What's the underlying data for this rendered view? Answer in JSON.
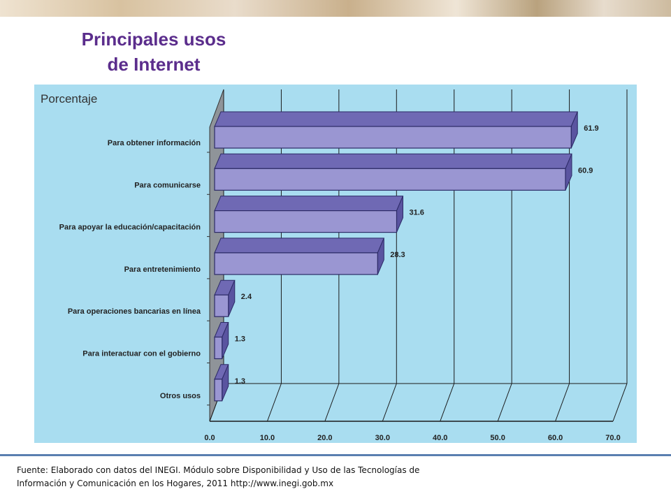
{
  "slide": {
    "title_line1": "Principales usos",
    "title_line2": "de Internet",
    "footer_line1": "Fuente: Elaborado con datos del INEGI. Módulo sobre Disponibilidad y Uso de las Tecnologías de",
    "footer_line2": "Información y Comunicación en los Hogares, 2011 http://www.inegi.gob.mx"
  },
  "chart_data": {
    "type": "bar",
    "orientation": "horizontal",
    "style": "3d",
    "ylabel": "Porcentaje",
    "categories": [
      "Para obtener información",
      "Para comunicarse",
      "Para apoyar la educación/capacitación",
      "Para entretenimiento",
      "Para operaciones bancarias en línea",
      "Para interactuar con el gobierno",
      "Otros usos"
    ],
    "values": [
      61.9,
      60.9,
      31.6,
      28.3,
      2.4,
      1.3,
      1.3
    ],
    "value_labels": [
      "61.9",
      "60.9",
      "31.6",
      "28.3",
      "2.4",
      "1.3",
      "1.3"
    ],
    "xlim": [
      0,
      70
    ],
    "x_ticks": [
      0,
      10,
      20,
      30,
      40,
      50,
      60,
      70
    ],
    "x_tick_labels": [
      "0.0",
      "10.0",
      "20.0",
      "30.0",
      "40.0",
      "50.0",
      "60.0",
      "70.0"
    ],
    "grid": true,
    "legend": "none",
    "colors": {
      "background": "#a9ddf0",
      "bar_front": "#9a96d2",
      "bar_top": "#6f69b4",
      "bar_side": "#5a54a0",
      "bar_edge": "#2c2a66",
      "grid": "#1a1a1a"
    }
  }
}
